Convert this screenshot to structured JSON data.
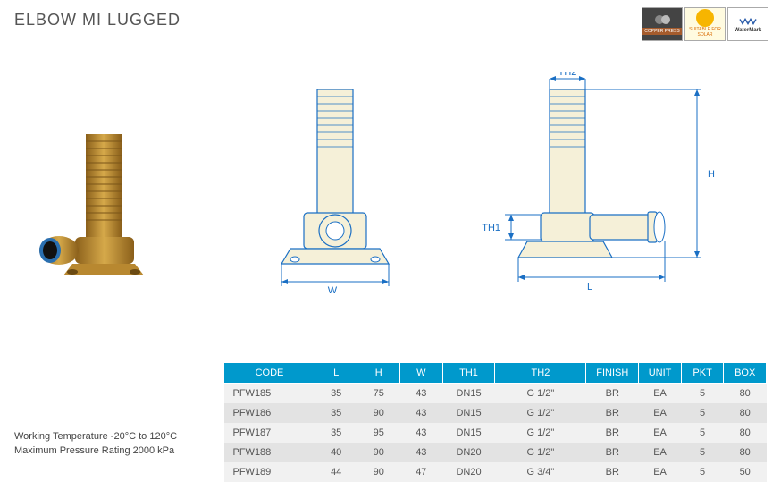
{
  "title": "ELBOW MI LUGGED",
  "badges": {
    "copper": "COPPER PRESS",
    "solar": "SUITABLE FOR SOLAR",
    "watermark": "WaterMark"
  },
  "notes": {
    "temp": "Working Temperature  -20°C to 120°C",
    "pressure": "Maximum Pressure Rating  2000 kPa"
  },
  "diagram_labels": {
    "W": "W",
    "L": "L",
    "H": "H",
    "TH1": "TH1",
    "TH2": "TH2"
  },
  "table": {
    "columns": [
      "CODE",
      "L",
      "H",
      "W",
      "TH1",
      "TH2",
      "FINISH",
      "UNIT",
      "PKT",
      "BOX"
    ],
    "col_widths": [
      "90px",
      "42px",
      "42px",
      "42px",
      "52px",
      "90px",
      "52px",
      "42px",
      "42px",
      "42px"
    ],
    "rows": [
      [
        "PFW185",
        "35",
        "75",
        "43",
        "DN15",
        "G 1/2\"",
        "BR",
        "EA",
        "5",
        "80"
      ],
      [
        "PFW186",
        "35",
        "90",
        "43",
        "DN15",
        "G 1/2\"",
        "BR",
        "EA",
        "5",
        "80"
      ],
      [
        "PFW187",
        "35",
        "95",
        "43",
        "DN15",
        "G 1/2\"",
        "BR",
        "EA",
        "5",
        "80"
      ],
      [
        "PFW188",
        "40",
        "90",
        "43",
        "DN20",
        "G 1/2\"",
        "BR",
        "EA",
        "5",
        "80"
      ],
      [
        "PFW189",
        "44",
        "90",
        "47",
        "DN20",
        "G 3/4\"",
        "BR",
        "EA",
        "5",
        "50"
      ]
    ]
  },
  "colors": {
    "header_bg": "#0099cc",
    "row_odd": "#f1f1f1",
    "row_even": "#e3e3e3",
    "dim_blue": "#1a6fc4",
    "brass": "#c89b3c",
    "brass_dark": "#a87920"
  }
}
